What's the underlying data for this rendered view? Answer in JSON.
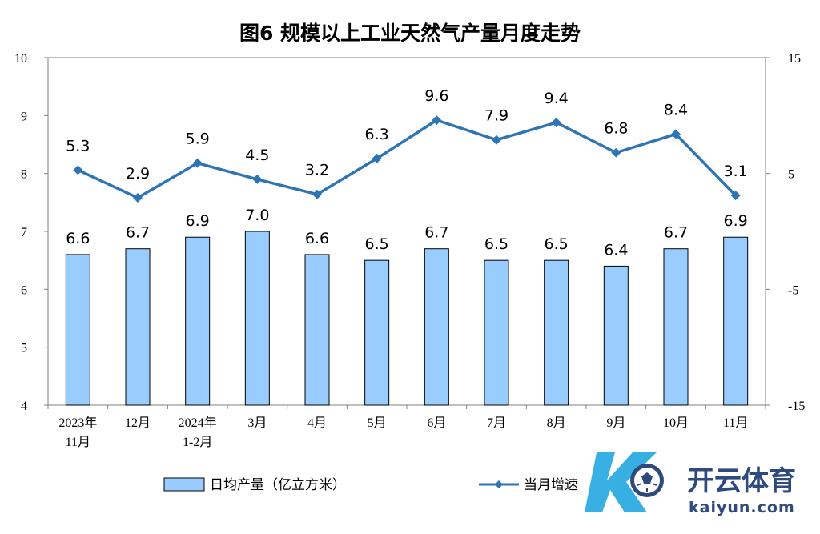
{
  "chart_data": {
    "type": "bar",
    "title": "图6  规模以上工业天然气产量月度走势",
    "categories": [
      [
        "2023年",
        "11月"
      ],
      [
        "12月"
      ],
      [
        "2024年",
        "1-2月"
      ],
      [
        "3月"
      ],
      [
        "4月"
      ],
      [
        "5月"
      ],
      [
        "6月"
      ],
      [
        "7月"
      ],
      [
        "8月"
      ],
      [
        "9月"
      ],
      [
        "10月"
      ],
      [
        "11月"
      ]
    ],
    "series": [
      {
        "name": "日均产量（亿立方米）",
        "type": "bar",
        "axis": "left",
        "color": "#99ccff",
        "values": [
          6.6,
          6.7,
          6.9,
          7.0,
          6.6,
          6.5,
          6.7,
          6.5,
          6.5,
          6.4,
          6.7,
          6.9
        ],
        "labels": [
          "6.6",
          "6.7",
          "6.9",
          "7.0",
          "6.6",
          "6.5",
          "6.7",
          "6.5",
          "6.5",
          "6.4",
          "6.7",
          "6.9"
        ]
      },
      {
        "name": "当月增速（%）",
        "type": "line",
        "axis": "right",
        "color": "#2e75b6",
        "values": [
          5.3,
          2.9,
          5.9,
          4.5,
          3.2,
          6.3,
          9.6,
          7.9,
          9.4,
          6.8,
          8.4,
          3.1
        ],
        "labels": [
          "5.3",
          "2.9",
          "5.9",
          "4.5",
          "3.2",
          "6.3",
          "9.6",
          "7.9",
          "9.4",
          "6.8",
          "8.4",
          "3.1"
        ]
      }
    ],
    "y_left": {
      "min": 4,
      "max": 10,
      "ticks": [
        "4",
        "5",
        "6",
        "7",
        "8",
        "9",
        "10"
      ]
    },
    "y_right": {
      "min": -15,
      "max": 15,
      "ticks": [
        "-15",
        "-5",
        "5",
        "15"
      ]
    },
    "grid": false,
    "legend": "bottom"
  },
  "legend": {
    "bar_label": "日均产量（亿立方米）",
    "line_label": "当月增速"
  },
  "watermark": {
    "brand": "开云体育",
    "url": "kaiyun.com"
  }
}
